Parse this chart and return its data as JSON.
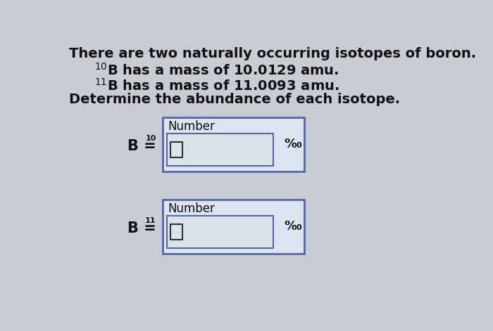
{
  "bg_color": "#c8cdd4",
  "inner_bg": "#dde3ec",
  "text_line1": "There are two naturally occurring isotopes of boron.",
  "text_line2_super": "$^{10}$",
  "text_line2_body": "B has a mass of 10.0129 amu.",
  "text_line3_super": "$^{11}$",
  "text_line3_body": "B has a mass of 11.0093 amu.",
  "text_line4": "Determine the abundance of each isotope.",
  "box_label": "Number",
  "percent_label": "%₀",
  "iso1": "$^{10}$",
  "iso2": "$^{11}$",
  "outer_box_edge": "#5566aa",
  "inner_box_edge": "#5566aa",
  "inner_field_edge": "#444444",
  "white": "#ffffff",
  "text_color": "#111111",
  "fs_main": 14,
  "fs_label": 12,
  "fs_super": 9,
  "fs_percent": 13
}
